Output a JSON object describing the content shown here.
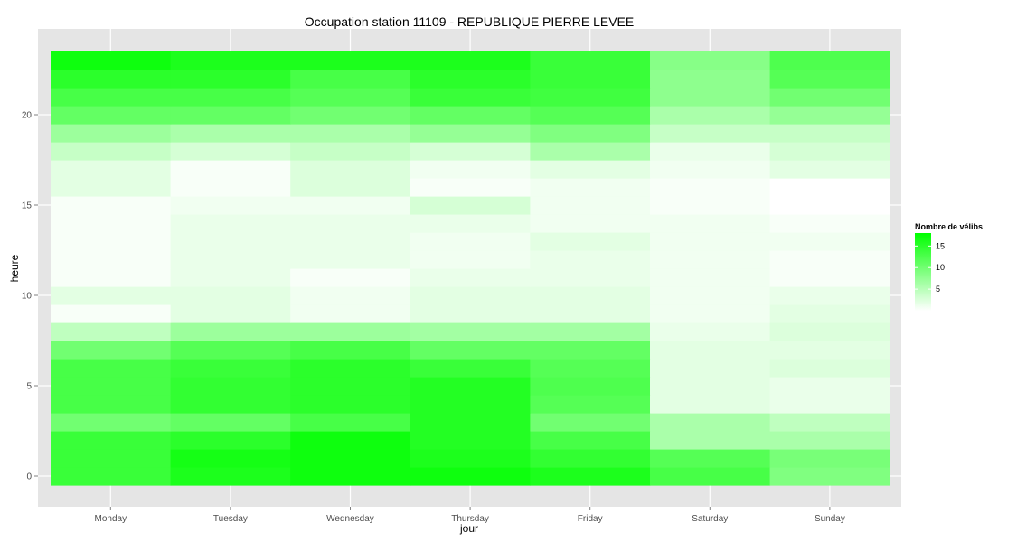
{
  "chart_data": {
    "type": "heatmap",
    "title": "Occupation station 11109 - REPUBLIQUE PIERRE LEVEE",
    "xlabel": "jour",
    "ylabel": "heure",
    "x_categories": [
      "Monday",
      "Tuesday",
      "Wednesday",
      "Thursday",
      "Friday",
      "Saturday",
      "Sunday"
    ],
    "y_ticks": [
      0,
      5,
      10,
      15,
      20
    ],
    "y_range": [
      -0.5,
      23.5
    ],
    "grid": true,
    "legend": {
      "title": "Nombre de vélibs",
      "placement": "right",
      "ticks": [
        5,
        10,
        15
      ],
      "range": [
        0,
        18
      ],
      "low_color": "#ffffff",
      "high_color": "#00ff00"
    },
    "values": [
      [
        14.0,
        16.0,
        17.0,
        17.0,
        16.0,
        13.0,
        9.0
      ],
      [
        14.0,
        16.5,
        17.0,
        16.0,
        14.5,
        12.0,
        9.5
      ],
      [
        14.0,
        15.0,
        17.0,
        15.5,
        13.0,
        6.0,
        6.0
      ],
      [
        10.0,
        11.0,
        13.0,
        15.5,
        10.0,
        6.0,
        4.5
      ],
      [
        13.0,
        14.5,
        15.0,
        15.5,
        12.0,
        2.0,
        1.5
      ],
      [
        13.0,
        14.5,
        15.0,
        15.5,
        12.5,
        2.0,
        1.5
      ],
      [
        13.0,
        14.0,
        15.0,
        14.0,
        12.0,
        2.0,
        2.5
      ],
      [
        10.0,
        12.0,
        13.0,
        11.0,
        11.0,
        2.0,
        2.0
      ],
      [
        4.5,
        7.0,
        7.0,
        6.5,
        6.5,
        1.5,
        2.5
      ],
      [
        0.5,
        2.0,
        1.0,
        2.0,
        2.0,
        1.0,
        2.0
      ],
      [
        2.0,
        2.0,
        1.0,
        2.0,
        2.0,
        1.0,
        1.5
      ],
      [
        0.5,
        1.5,
        0.5,
        1.5,
        1.5,
        1.0,
        0.5
      ],
      [
        0.5,
        1.5,
        1.5,
        1.0,
        1.5,
        1.0,
        0.5
      ],
      [
        0.5,
        1.5,
        1.5,
        1.0,
        2.0,
        1.0,
        1.0
      ],
      [
        0.5,
        1.5,
        1.5,
        1.5,
        1.0,
        1.0,
        0.5
      ],
      [
        0.5,
        1.0,
        1.0,
        3.0,
        1.0,
        0.5,
        0.0
      ],
      [
        2.0,
        0.5,
        2.5,
        0.5,
        1.0,
        0.5,
        0.0
      ],
      [
        2.0,
        0.5,
        2.5,
        1.0,
        2.0,
        1.0,
        2.0
      ],
      [
        4.0,
        3.0,
        4.0,
        3.0,
        6.0,
        1.5,
        3.0
      ],
      [
        7.0,
        6.0,
        6.0,
        7.5,
        9.0,
        4.0,
        4.0
      ],
      [
        11.0,
        11.0,
        10.0,
        11.0,
        12.0,
        6.0,
        7.5
      ],
      [
        13.0,
        13.0,
        12.0,
        14.0,
        13.5,
        8.0,
        10.0
      ],
      [
        15.0,
        15.0,
        13.0,
        15.0,
        14.0,
        8.0,
        12.0
      ],
      [
        17.0,
        16.0,
        16.0,
        16.0,
        14.0,
        8.5,
        12.5
      ]
    ]
  }
}
